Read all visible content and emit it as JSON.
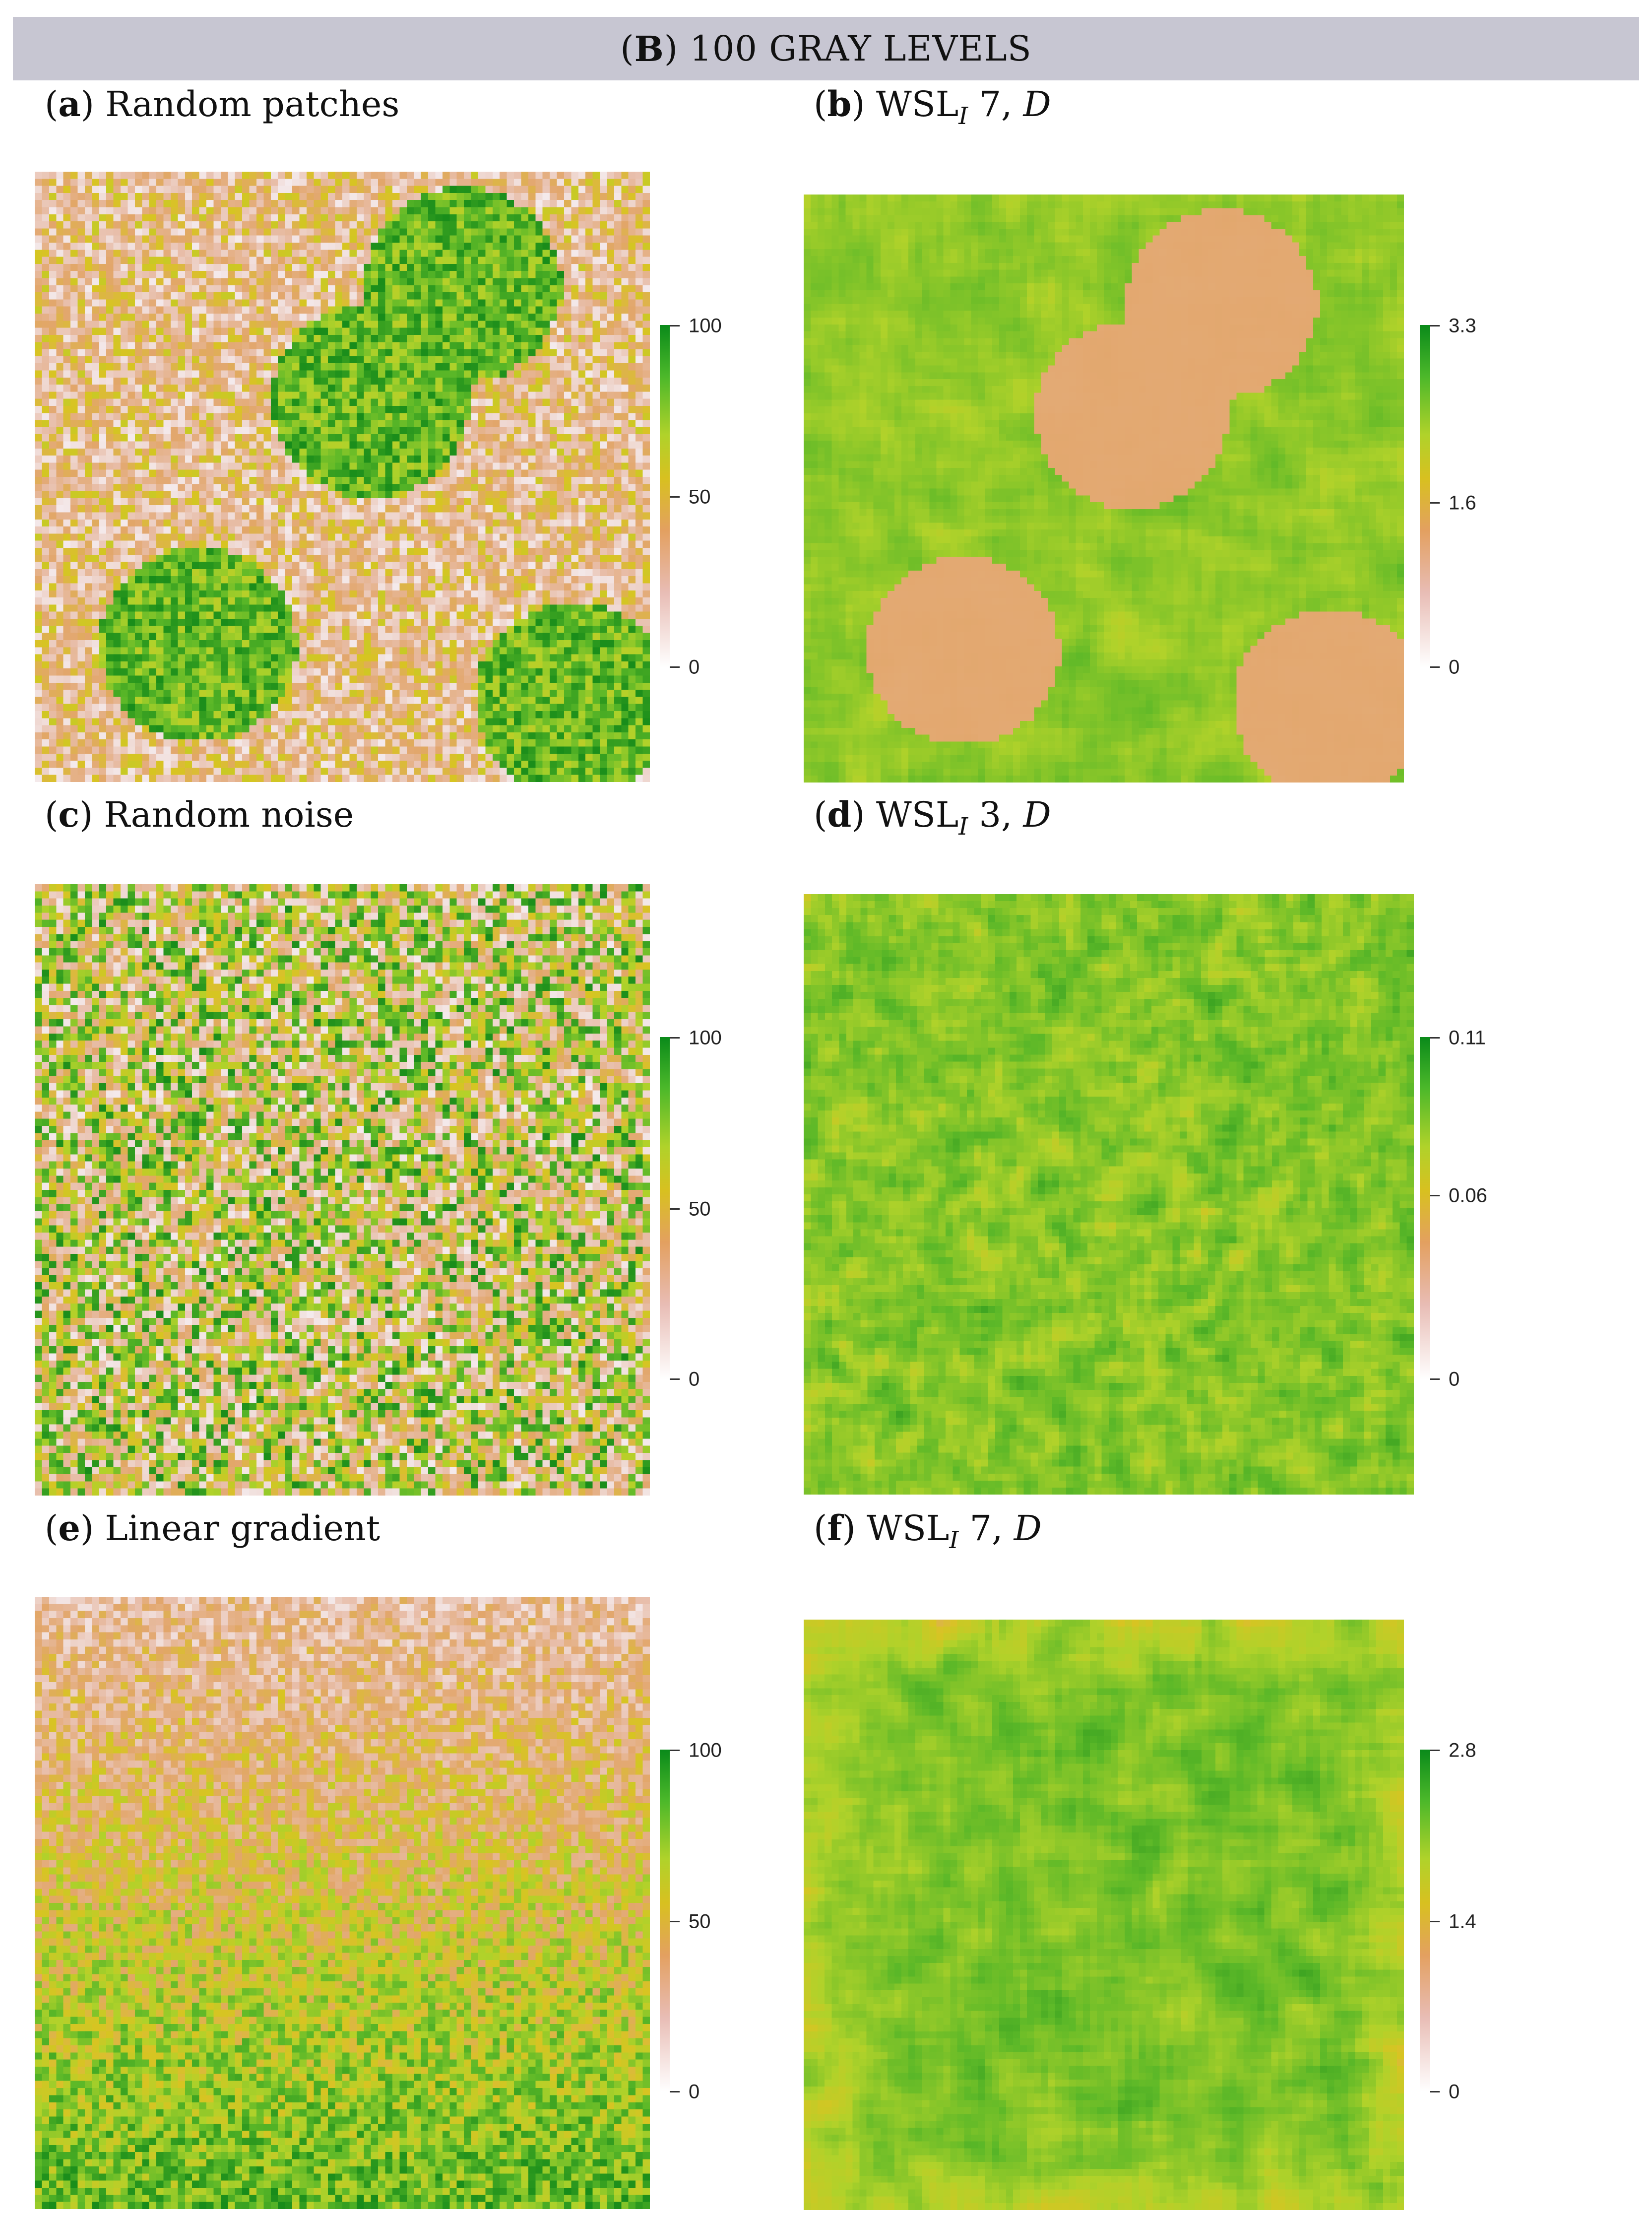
{
  "banner": {
    "bold": "B",
    "text": "100 GRAY LEVELS"
  },
  "panels": [
    {
      "id": "a",
      "caption_pre": "",
      "caption_text": "Random patches",
      "caption_sub": "",
      "caption_post": "",
      "pattern": "patches",
      "legend": [
        "100",
        "50",
        "0"
      ]
    },
    {
      "id": "b",
      "caption_pre": "WSL",
      "caption_sub": "I",
      "caption_post": " 7, ",
      "caption_script": "D",
      "pattern": "patches-smooth",
      "legend": [
        "3.3",
        "1.6",
        "0"
      ]
    },
    {
      "id": "c",
      "caption_pre": "",
      "caption_text": "Random noise",
      "caption_sub": "",
      "caption_post": "",
      "pattern": "noise",
      "legend": [
        "100",
        "50",
        "0"
      ]
    },
    {
      "id": "d",
      "caption_pre": "WSL",
      "caption_sub": "I",
      "caption_post": " 3, ",
      "caption_script": "D",
      "pattern": "noise-smooth",
      "legend": [
        "0.11",
        "0.06",
        "0"
      ]
    },
    {
      "id": "e",
      "caption_pre": "",
      "caption_text": "Linear gradient",
      "caption_sub": "",
      "caption_post": "",
      "pattern": "gradient",
      "legend": [
        "100",
        "50",
        "0"
      ]
    },
    {
      "id": "f",
      "caption_pre": "WSL",
      "caption_sub": "I",
      "caption_post": " 7, ",
      "caption_script": "D",
      "pattern": "gradient-smooth",
      "legend": [
        "2.8",
        "1.4",
        "0"
      ]
    }
  ],
  "colors": {
    "low": "#f3e7e8",
    "mid_low": "#e2a978",
    "mid": "#d9c21e",
    "mid_high": "#8fcf2c",
    "high": "#1f9a1f"
  }
}
